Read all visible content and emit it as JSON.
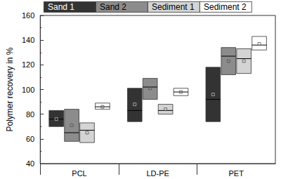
{
  "chart_data": {
    "type": "box",
    "y_label": "Polymer recovery in %",
    "categories": [
      "PCL",
      "LD-PE",
      "PET"
    ],
    "ylim": [
      40,
      160
    ],
    "yticks": [
      40,
      60,
      80,
      100,
      120,
      140,
      160
    ],
    "grid": false,
    "legend": "top",
    "series": [
      {
        "name": "Sand 1",
        "color": "#333333",
        "low": [
          70,
          74,
          74
        ],
        "high": [
          83,
          101,
          118
        ],
        "median": [
          76,
          83,
          92
        ],
        "mean": [
          76,
          88,
          96
        ]
      },
      {
        "name": "Sand 2",
        "color": "#8c8c8c",
        "low": [
          58,
          92,
          112
        ],
        "high": [
          84,
          109,
          134
        ],
        "median": [
          65,
          102,
          127
        ],
        "mean": [
          71,
          101,
          123
        ]
      },
      {
        "name": "Sediment 1",
        "color": "#d4d4d4",
        "low": [
          57,
          80,
          113
        ],
        "high": [
          73,
          88,
          133
        ],
        "median": [
          67,
          83,
          125
        ],
        "mean": [
          65,
          84,
          123
        ]
      },
      {
        "name": "Sediment 2",
        "color": "#ffffff",
        "low": [
          84,
          95,
          132
        ],
        "high": [
          89,
          101,
          143
        ],
        "median": [
          86,
          98,
          136
        ],
        "mean": [
          86,
          98,
          137
        ]
      }
    ]
  }
}
